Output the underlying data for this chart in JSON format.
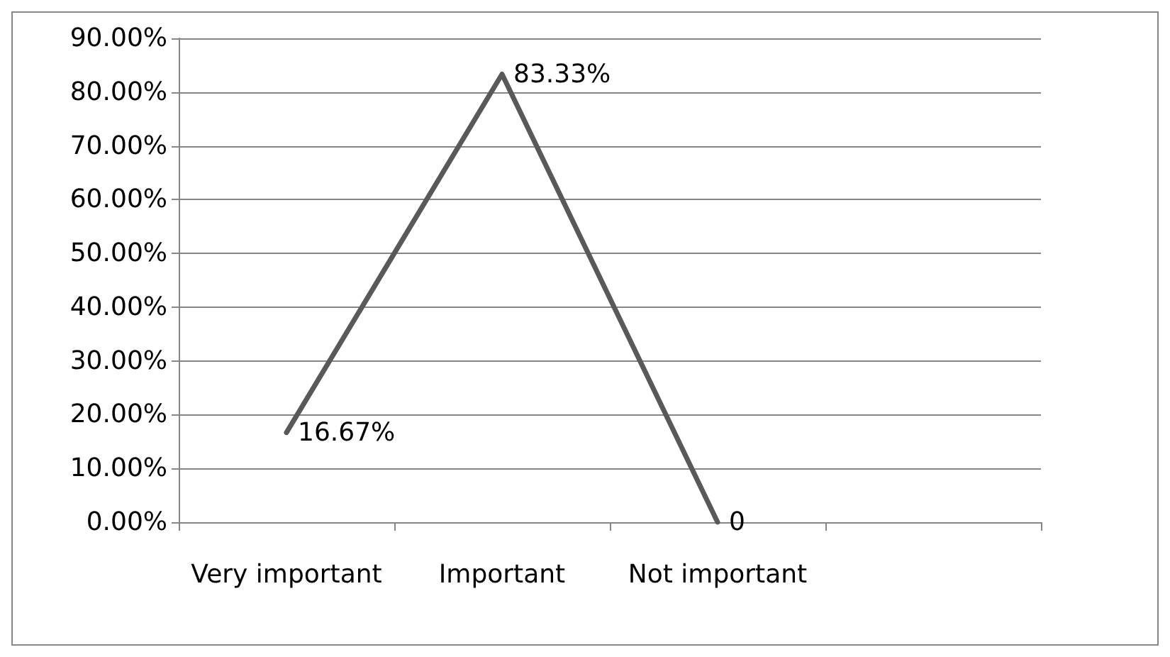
{
  "chart_data": {
    "type": "line",
    "categories": [
      "Very important",
      "Important",
      "Not important",
      null
    ],
    "series": [
      {
        "color": "#595959",
        "values": [
          16.67,
          83.33,
          0,
          null
        ],
        "value_labels": [
          "16.67%",
          "83.33%",
          "0",
          null
        ]
      }
    ],
    "ylim": [
      0,
      90
    ],
    "yticks": [
      {
        "value": 0,
        "label": "0.00%"
      },
      {
        "value": 10,
        "label": "10.00%"
      },
      {
        "value": 20,
        "label": "20.00%"
      },
      {
        "value": 30,
        "label": "30.00%"
      },
      {
        "value": 40,
        "label": "40.00%"
      },
      {
        "value": 50,
        "label": "50.00%"
      },
      {
        "value": 60,
        "label": "60.00%"
      },
      {
        "value": 70,
        "label": "70.00%"
      },
      {
        "value": 80,
        "label": "80.00%"
      },
      {
        "value": 90,
        "label": "90.00%"
      }
    ],
    "grid": "y",
    "marker": "none",
    "line_style": "solid"
  }
}
